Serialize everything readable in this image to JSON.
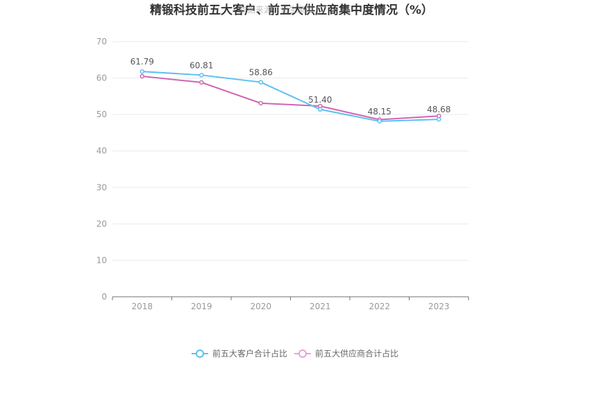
{
  "chart_data": {
    "type": "line",
    "title": "精锻科技前五大客户、前五大供应商集中度情况（%）",
    "watermark": "数据来源：恒生聚源",
    "categories": [
      "2018",
      "2019",
      "2020",
      "2021",
      "2022",
      "2023"
    ],
    "ylim": [
      0,
      70
    ],
    "yticks": [
      0,
      10,
      20,
      30,
      40,
      50,
      60,
      70
    ],
    "grid": true,
    "legend_position": "bottom-center",
    "series": [
      {
        "name": "前五大客户合计占比",
        "values": [
          61.79,
          60.81,
          58.86,
          51.4,
          48.15,
          48.68
        ],
        "labels": [
          "61.79",
          "60.81",
          "58.86",
          "51.40",
          "48.15",
          "48.68"
        ],
        "color": "#5bc0f0"
      },
      {
        "name": "前五大供应商合计占比",
        "values": [
          60.5,
          58.8,
          53.1,
          52.3,
          48.6,
          49.6
        ],
        "color": "#d064b4"
      }
    ]
  }
}
